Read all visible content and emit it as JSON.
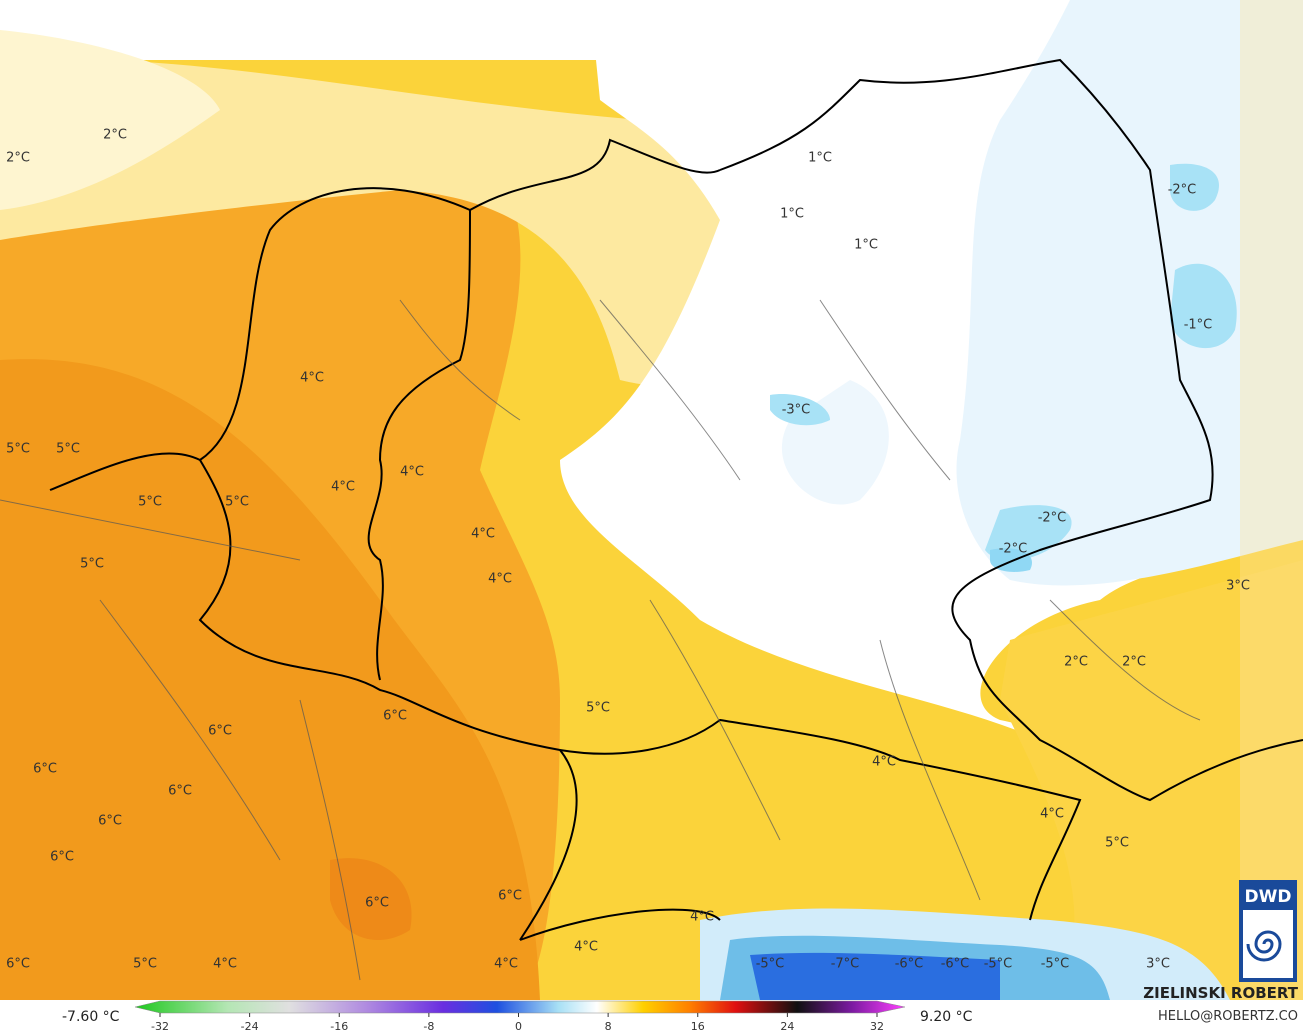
{
  "map": {
    "labels": [
      "2°C",
      "2°C",
      "1°C",
      "1°C",
      "1°C",
      "-2°C",
      "-1°C",
      "4°C",
      "-3°C",
      "5°C",
      "5°C",
      "4°C",
      "4°C",
      "5°C",
      "5°C",
      "-2°C",
      "4°C",
      "-2°C",
      "5°C",
      "4°C",
      "3°C",
      "2°C",
      "2°C",
      "5°C",
      "6°C",
      "6°C",
      "4°C",
      "6°C",
      "6°C",
      "4°C",
      "6°C",
      "5°C",
      "6°C",
      "6°C",
      "6°C",
      "4°C",
      "4°C",
      "6°C",
      "5°C",
      "4°C",
      "4°C",
      "-5°C",
      "-7°C",
      "-6°C",
      "-6°C",
      "-5°C",
      "-5°C",
      "3°C"
    ]
  },
  "legend": {
    "min_label": "-7.60 °C",
    "max_label": "9.20 °C",
    "ticks": [
      -32,
      -24,
      -16,
      -8,
      0,
      8,
      16,
      24,
      32
    ]
  },
  "credits": {
    "author": "ZIELINSKI ROBERT",
    "email": "HELLO@ROBERTZ.CO",
    "logo": "DWD"
  }
}
